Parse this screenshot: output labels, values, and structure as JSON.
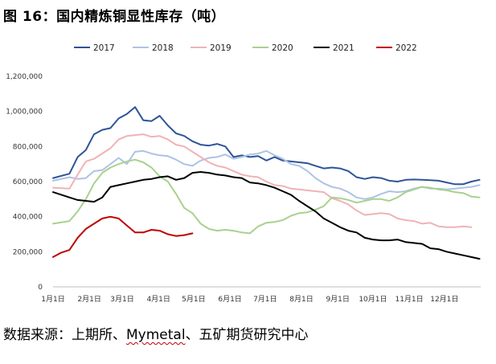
{
  "figure": {
    "title": "图 16：国内精炼铜显性库存（吨）",
    "source_prefix": "数据来源：上期所、",
    "source_wavy": "Mymetal",
    "source_suffix": "、五矿期货研究中心"
  },
  "chart_data": {
    "type": "line",
    "title": "",
    "xlabel": "",
    "ylabel": "",
    "x_ticks": [
      "1月1日",
      "2月1日",
      "3月1日",
      "4月1日",
      "5月1日",
      "6月1日",
      "7月1日",
      "8月1日",
      "9月1日",
      "10月1日",
      "11月1日",
      "12月1日"
    ],
    "x_tick_days": [
      0,
      31,
      59,
      90,
      120,
      151,
      181,
      212,
      243,
      273,
      304,
      334
    ],
    "xlim": [
      0,
      365
    ],
    "y_ticks": [
      "0",
      "200,000",
      "400,000",
      "600,000",
      "800,000",
      "1,000,000",
      "1,200,000"
    ],
    "ylim": [
      0,
      1200000
    ],
    "grid": false,
    "legend_position": "top",
    "series": [
      {
        "name": "2017",
        "color": "#2e5496",
        "x": [
          0,
          14,
          21,
          28,
          35,
          42,
          49,
          56,
          63,
          70,
          77,
          84,
          91,
          98,
          105,
          112,
          119,
          126,
          133,
          140,
          147,
          154,
          161,
          168,
          175,
          182,
          189,
          196,
          203,
          210,
          217,
          224,
          231,
          238,
          245,
          252,
          259,
          266,
          273,
          280,
          287,
          294,
          301,
          308,
          315,
          322,
          329,
          336,
          343,
          350,
          357,
          364
        ],
        "y": [
          620000,
          645000,
          740000,
          780000,
          870000,
          895000,
          905000,
          960000,
          985000,
          1025000,
          950000,
          945000,
          975000,
          920000,
          875000,
          860000,
          830000,
          810000,
          805000,
          815000,
          800000,
          740000,
          750000,
          740000,
          745000,
          720000,
          740000,
          720000,
          715000,
          710000,
          705000,
          690000,
          675000,
          680000,
          675000,
          660000,
          625000,
          615000,
          625000,
          620000,
          605000,
          600000,
          610000,
          612000,
          610000,
          608000,
          605000,
          595000,
          585000,
          585000,
          600000,
          610000
        ]
      },
      {
        "name": "2018",
        "color": "#aec3e2",
        "x": [
          0,
          14,
          21,
          28,
          35,
          42,
          49,
          56,
          63,
          70,
          77,
          84,
          91,
          98,
          105,
          112,
          119,
          126,
          133,
          140,
          147,
          154,
          161,
          168,
          175,
          182,
          189,
          196,
          203,
          210,
          217,
          224,
          231,
          238,
          245,
          252,
          259,
          266,
          273,
          280,
          287,
          294,
          301,
          308,
          315,
          322,
          329,
          336,
          343,
          350,
          357,
          364
        ],
        "y": [
          605000,
          625000,
          615000,
          620000,
          660000,
          665000,
          700000,
          735000,
          700000,
          770000,
          775000,
          760000,
          750000,
          745000,
          725000,
          700000,
          690000,
          720000,
          735000,
          740000,
          755000,
          730000,
          740000,
          755000,
          760000,
          775000,
          750000,
          730000,
          700000,
          690000,
          660000,
          620000,
          590000,
          570000,
          560000,
          540000,
          510000,
          500000,
          510000,
          530000,
          545000,
          540000,
          545000,
          560000,
          570000,
          560000,
          560000,
          555000,
          560000,
          565000,
          570000,
          580000
        ]
      },
      {
        "name": "2019",
        "color": "#f0b3b5",
        "x": [
          0,
          14,
          21,
          28,
          35,
          42,
          49,
          56,
          63,
          70,
          77,
          84,
          91,
          98,
          105,
          112,
          119,
          126,
          133,
          140,
          147,
          154,
          161,
          168,
          175,
          182,
          189,
          196,
          203,
          210,
          217,
          224,
          231,
          238,
          245,
          252,
          259,
          266,
          273,
          280,
          287,
          294,
          301,
          308,
          315,
          322,
          329,
          336,
          343,
          350,
          357
        ],
        "y": [
          565000,
          560000,
          640000,
          715000,
          730000,
          760000,
          790000,
          840000,
          860000,
          865000,
          870000,
          855000,
          860000,
          840000,
          810000,
          800000,
          770000,
          740000,
          710000,
          690000,
          680000,
          660000,
          640000,
          630000,
          625000,
          600000,
          580000,
          575000,
          560000,
          555000,
          550000,
          545000,
          540000,
          505000,
          490000,
          470000,
          435000,
          410000,
          415000,
          420000,
          415000,
          390000,
          380000,
          375000,
          360000,
          365000,
          345000,
          340000,
          340000,
          345000,
          340000
        ]
      },
      {
        "name": "2020",
        "color": "#a9d18e",
        "x": [
          0,
          14,
          21,
          28,
          35,
          42,
          49,
          56,
          63,
          70,
          77,
          84,
          91,
          98,
          105,
          112,
          119,
          126,
          133,
          140,
          147,
          154,
          161,
          168,
          175,
          182,
          189,
          196,
          203,
          210,
          217,
          224,
          231,
          238,
          245,
          252,
          259,
          266,
          273,
          280,
          287,
          294,
          301,
          308,
          315,
          322,
          329,
          336,
          343,
          350,
          357,
          364
        ],
        "y": [
          360000,
          375000,
          430000,
          500000,
          590000,
          650000,
          680000,
          700000,
          715000,
          725000,
          710000,
          680000,
          630000,
          600000,
          530000,
          450000,
          420000,
          360000,
          330000,
          320000,
          325000,
          320000,
          310000,
          305000,
          345000,
          365000,
          370000,
          380000,
          405000,
          420000,
          425000,
          440000,
          460000,
          510000,
          505000,
          495000,
          480000,
          490000,
          500000,
          500000,
          490000,
          510000,
          540000,
          555000,
          570000,
          565000,
          555000,
          550000,
          540000,
          535000,
          515000,
          510000
        ]
      },
      {
        "name": "2021",
        "color": "#000000",
        "x": [
          0,
          14,
          21,
          28,
          35,
          42,
          49,
          56,
          63,
          70,
          77,
          84,
          91,
          98,
          105,
          112,
          119,
          126,
          133,
          140,
          147,
          154,
          161,
          168,
          175,
          182,
          189,
          196,
          203,
          210,
          217,
          224,
          231,
          238,
          245,
          252,
          259,
          266,
          273,
          280,
          287,
          294,
          301,
          308,
          315,
          322,
          329,
          336,
          343,
          350,
          357,
          364
        ],
        "y": [
          540000,
          510000,
          495000,
          490000,
          485000,
          510000,
          570000,
          580000,
          590000,
          600000,
          610000,
          615000,
          625000,
          630000,
          610000,
          620000,
          650000,
          655000,
          650000,
          640000,
          635000,
          625000,
          620000,
          595000,
          590000,
          580000,
          565000,
          545000,
          525000,
          490000,
          460000,
          430000,
          390000,
          365000,
          340000,
          320000,
          310000,
          280000,
          270000,
          265000,
          265000,
          270000,
          255000,
          250000,
          245000,
          220000,
          215000,
          200000,
          190000,
          180000,
          170000,
          160000
        ]
      },
      {
        "name": "2022",
        "color": "#c00000",
        "x": [
          0,
          7,
          14,
          21,
          28,
          35,
          42,
          49,
          56,
          63,
          70,
          77,
          84,
          91,
          98,
          105,
          112,
          119
        ],
        "y": [
          170000,
          195000,
          210000,
          280000,
          330000,
          360000,
          390000,
          400000,
          390000,
          350000,
          310000,
          310000,
          325000,
          320000,
          300000,
          290000,
          295000,
          305000
        ]
      }
    ]
  }
}
